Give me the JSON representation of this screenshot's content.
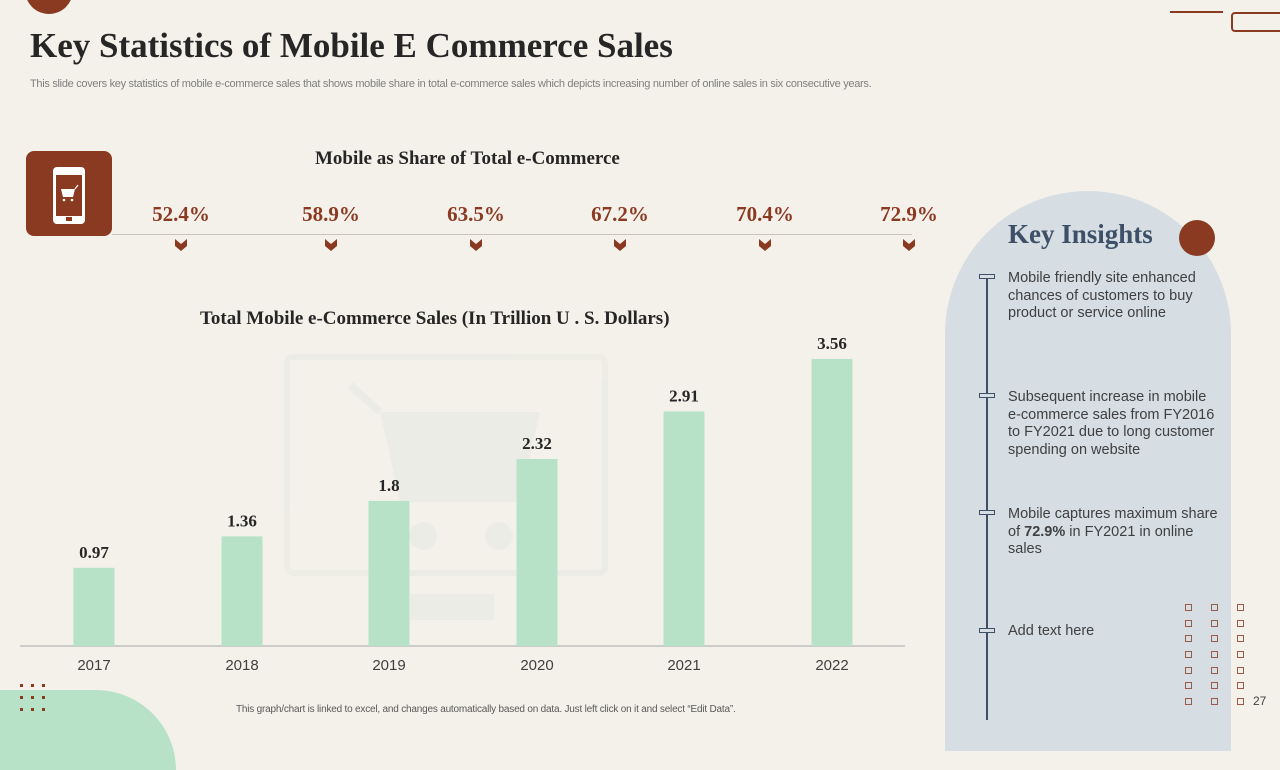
{
  "title": "Key Statistics of Mobile E Commerce Sales",
  "subtitle": "This slide covers key statistics of mobile e-commerce sales that shows mobile share in total e-commerce sales which depicts increasing number of online sales in six consecutive years.",
  "share": {
    "title": "Mobile as Share of Total e-Commerce",
    "values": [
      "52.4%",
      "58.9%",
      "63.5%",
      "67.2%",
      "70.4%",
      "72.9%"
    ]
  },
  "chart_data": {
    "type": "bar",
    "title": "Total Mobile e-Commerce Sales (In Trillion U . S. Dollars)",
    "categories": [
      "2017",
      "2018",
      "2019",
      "2020",
      "2021",
      "2022"
    ],
    "values": [
      0.97,
      1.36,
      1.8,
      2.32,
      2.91,
      3.56
    ],
    "labels": [
      "0.97",
      "1.36",
      "1.8",
      "2.32",
      "2.91",
      "3.56"
    ],
    "xlabel": "",
    "ylabel": "",
    "ylim": [
      0,
      3.56
    ],
    "grid": false,
    "bar_color": "#b8e2c8"
  },
  "insights": {
    "title": "Key Insights",
    "items": [
      "Mobile friendly site enhanced chances of customers to buy product or service online",
      "Subsequent increase in mobile e-commerce sales from FY2016 to FY2021 due to long customer spending on website",
      {
        "pre": "Mobile captures maximum share of ",
        "bold": "72.9%",
        "post": " in FY2021 in online sales"
      },
      "Add text here"
    ]
  },
  "footnote": "This graph/chart is linked to excel, and changes automatically based on data. Just left click on it and select “Edit Data”.",
  "page_number": "27",
  "colors": {
    "accent": "#8b3a22",
    "bar": "#b8e2c8",
    "panel": "#d6dde3",
    "heading": "#3d5068"
  }
}
